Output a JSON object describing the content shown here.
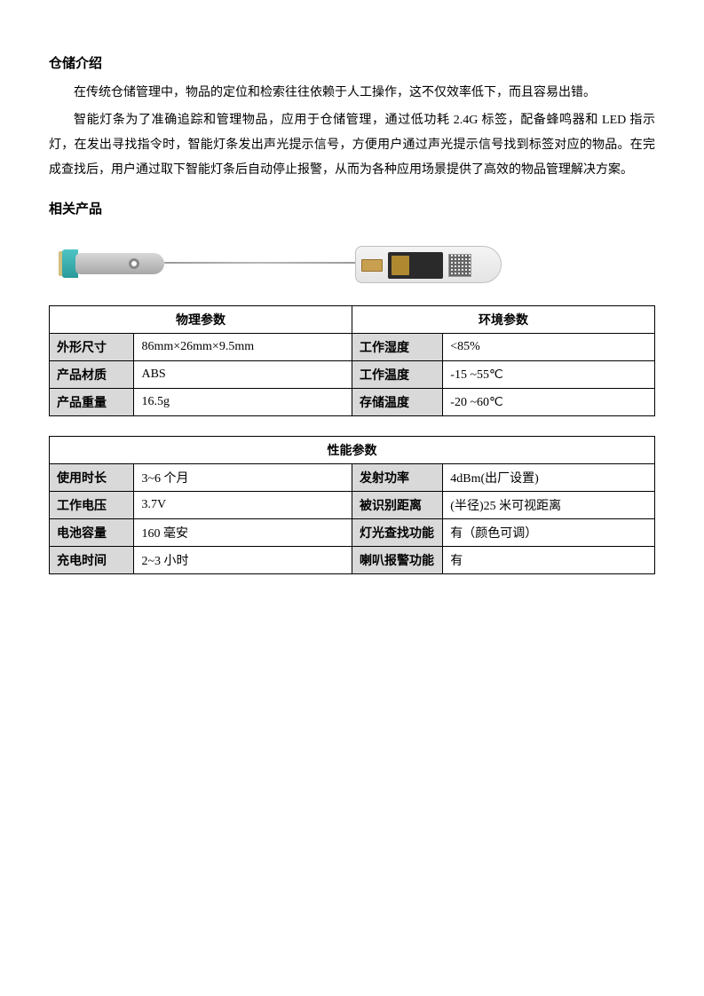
{
  "intro": {
    "heading": "仓储介绍",
    "p1": "在传统仓储管理中，物品的定位和检索往往依赖于人工操作，这不仅效率低下，而且容易出错。",
    "p2": "智能灯条为了准确追踪和管理物品，应用于仓储管理，通过低功耗 2.4G 标签，配备蜂鸣器和 LED 指示灯，在发出寻找指令时，智能灯条发出声光提示信号，方便用户通过声光提示信号找到标签对应的物品。在完成查找后，用户通过取下智能灯条后自动停止报警，从而为各种应用场景提供了高效的物品管理解决方案。"
  },
  "related": {
    "heading": "相关产品"
  },
  "table1": {
    "header_left": "物理参数",
    "header_right": "环境参数",
    "rows": [
      {
        "l_label": "外形尺寸",
        "l_value": "86mm×26mm×9.5mm",
        "r_label": "工作湿度",
        "r_value": "<85%"
      },
      {
        "l_label": "产品材质",
        "l_value": "ABS",
        "r_label": "工作温度",
        "r_value": "-15 ~55℃"
      },
      {
        "l_label": "产品重量",
        "l_value": "16.5g",
        "r_label": "存储温度",
        "r_value": "-20 ~60℃"
      }
    ]
  },
  "table2": {
    "header": "性能参数",
    "rows": [
      {
        "l_label": "使用时长",
        "l_value": "3~6 个月",
        "r_label": "发射功率",
        "r_value": "4dBm(出厂设置)"
      },
      {
        "l_label": "工作电压",
        "l_value": "3.7V",
        "r_label": "被识别距离",
        "r_value": "(半径)25 米可视距离"
      },
      {
        "l_label": "电池容量",
        "l_value": "160 毫安",
        "r_label": "灯光查找功能",
        "r_value": "有（颜色可调）"
      },
      {
        "l_label": "充电时间",
        "l_value": "2~3 小时",
        "r_label": "喇叭报警功能",
        "r_value": "有"
      }
    ]
  },
  "style": {
    "label_bg": "#d9d9d9",
    "border_color": "#000000",
    "body_bg": "#ffffff",
    "font_size_body": 14,
    "font_size_heading": 15
  }
}
